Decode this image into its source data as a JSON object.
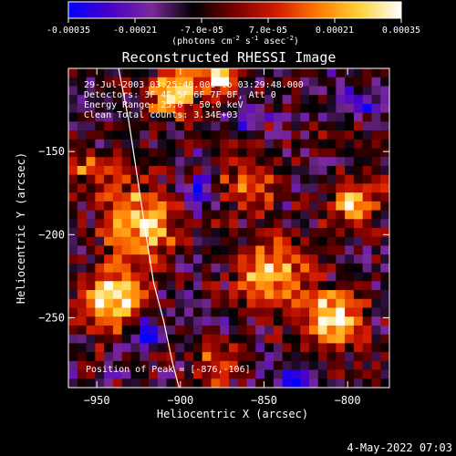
{
  "colorbar": {
    "ticks": [
      "-0.00035",
      "-0.00021",
      "-7.0e-05",
      "7.0e-05",
      "0.00021",
      "0.00035"
    ],
    "units_text": "(photons cm",
    "units_sup1": "-2",
    "units_mid": " s",
    "units_sup2": "-1",
    "units_tail": " asec",
    "units_sup3": "-2",
    "units_close": ")",
    "range": [
      -0.00035,
      0.00035
    ],
    "colors": [
      "#0000ff",
      "#4a00c8",
      "#7a2a9a",
      "#000000",
      "#7a0000",
      "#d21a00",
      "#ff7a00",
      "#ffd23a",
      "#ffffff"
    ]
  },
  "annotations": {
    "line1": "29-Jul-2003 03:25:40.000 to 03:29:48.000",
    "line2": "Detectors: 3F 4F 5F 6F 7F 8F, Att 0",
    "line3": "Energy Range: 25.0 - 50.0 keV",
    "line4": "Clean    Total counts: 3.34E+03",
    "peak": "Position of Peak = [-876,-106]"
  },
  "footer_date": "4-May-2022 07:03",
  "chart_data": {
    "type": "heatmap",
    "title": "Reconstructed RHESSI Image",
    "xlabel": "Heliocentric X (arcsec)",
    "ylabel": "Heliocentric Y (arcsec)",
    "xlim": [
      -967,
      -775
    ],
    "ylim": [
      -292,
      -100
    ],
    "x_ticks": [
      -950,
      -900,
      -850,
      -800
    ],
    "y_ticks": [
      -150,
      -200,
      -250
    ],
    "x_tick_labels": [
      "−950",
      "−900",
      "−850",
      "−800"
    ],
    "y_tick_labels": [
      "−150",
      "−200",
      "−250"
    ],
    "peak_position": [
      -876,
      -106
    ],
    "limb_curve": {
      "x": [
        -937,
        -931,
        -926,
        -921,
        -916,
        -910,
        -905,
        -899
      ],
      "y": [
        -100,
        -131,
        -164,
        -197,
        -229,
        -252,
        -276,
        -299
      ]
    },
    "grid": false,
    "colormap": "blue-black-red-yellow-white",
    "rows": 36,
    "cols": 36,
    "hotspots": [
      {
        "x": -905,
        "y": -115,
        "r": 14,
        "v": 0.9
      },
      {
        "x": -876,
        "y": -106,
        "r": 10,
        "v": 1.0
      },
      {
        "x": -925,
        "y": -193,
        "r": 22,
        "v": 0.85
      },
      {
        "x": -940,
        "y": -240,
        "r": 18,
        "v": 0.95
      },
      {
        "x": -845,
        "y": -225,
        "r": 20,
        "v": 0.8
      },
      {
        "x": -808,
        "y": -250,
        "r": 16,
        "v": 1.0
      },
      {
        "x": -795,
        "y": -180,
        "r": 14,
        "v": 0.75
      },
      {
        "x": -860,
        "y": -170,
        "r": 16,
        "v": 0.55
      },
      {
        "x": -880,
        "y": -280,
        "r": 14,
        "v": 0.5
      },
      {
        "x": -955,
        "y": -160,
        "r": 12,
        "v": 0.45
      }
    ],
    "coldspots": [
      {
        "x": -920,
        "y": -260,
        "r": 10,
        "v": -0.9
      },
      {
        "x": -890,
        "y": -175,
        "r": 10,
        "v": -0.6
      },
      {
        "x": -830,
        "y": -290,
        "r": 10,
        "v": -0.7
      },
      {
        "x": -790,
        "y": -120,
        "r": 10,
        "v": -0.5
      },
      {
        "x": -860,
        "y": -130,
        "r": 8,
        "v": -0.4
      }
    ]
  }
}
